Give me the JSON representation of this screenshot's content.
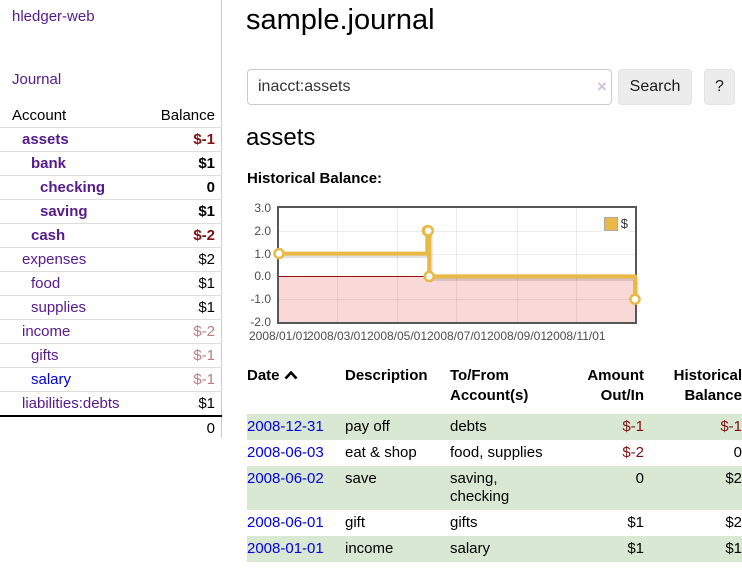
{
  "sidebar": {
    "brand": "hledger-web",
    "journal_link": "Journal",
    "accounts": {
      "headers": {
        "account": "Account",
        "balance": "Balance"
      },
      "rows": [
        {
          "name": "assets",
          "balance": "$-1"
        },
        {
          "name": "bank",
          "balance": "$1"
        },
        {
          "name": "checking",
          "balance": "0"
        },
        {
          "name": "saving",
          "balance": "$1"
        },
        {
          "name": "cash",
          "balance": "$-2"
        },
        {
          "name": "expenses",
          "balance": "$2"
        },
        {
          "name": "food",
          "balance": "$1"
        },
        {
          "name": "supplies",
          "balance": "$1"
        },
        {
          "name": "income",
          "balance": "$-2"
        },
        {
          "name": "gifts",
          "balance": "$-1"
        },
        {
          "name": "salary",
          "balance": "$-1"
        },
        {
          "name": "liabilities:debts",
          "balance": "$1"
        }
      ],
      "total": "0"
    }
  },
  "main": {
    "title": "sample.journal",
    "search": {
      "value": "inacct:assets",
      "clear": "×",
      "button": "Search",
      "help": "?"
    },
    "account_heading": "assets",
    "chart_label": "Historical Balance:"
  },
  "chart_data": {
    "type": "line",
    "step": true,
    "title": "Historical Balance",
    "series": [
      {
        "name": "$",
        "points": [
          [
            "2008-01-01",
            1
          ],
          [
            "2008-06-01",
            2
          ],
          [
            "2008-06-02",
            2
          ],
          [
            "2008-06-03",
            0
          ],
          [
            "2008-12-31",
            -1
          ]
        ]
      }
    ],
    "x_day_offsets": [
      0,
      152,
      153,
      154,
      365
    ],
    "x_range_days": 365,
    "ylim": [
      -2,
      3
    ],
    "yticks": [
      "3.0",
      "2.0",
      "1.0",
      "0.0",
      "-1.0",
      "-2.0"
    ],
    "xticks": [
      "2008/01/01",
      "2008/03/01",
      "2008/05/01",
      "2008/07/01",
      "2008/09/01",
      "2008/11/01"
    ],
    "legend": "$",
    "legend_position": "top-right",
    "grid": true,
    "negative_region_shaded": true,
    "line_color": "#e8b944",
    "negative_fill": "#f9d8d8"
  },
  "register": {
    "headers": {
      "date": "Date",
      "description": "Description",
      "accounts": "To/From Account(s)",
      "amount": "Amount Out/In",
      "balance": "Historical Balance"
    },
    "rows": [
      {
        "date": "2008-12-31",
        "description": "pay off",
        "accounts": "debts",
        "amount": "$-1",
        "balance": "$-1"
      },
      {
        "date": "2008-06-03",
        "description": "eat & shop",
        "accounts": "food, supplies",
        "amount": "$-2",
        "balance": "0"
      },
      {
        "date": "2008-06-02",
        "description": "save",
        "accounts": "saving, checking",
        "amount": "0",
        "balance": "$2"
      },
      {
        "date": "2008-06-01",
        "description": "gift",
        "accounts": "gifts",
        "amount": "$1",
        "balance": "$2"
      },
      {
        "date": "2008-01-01",
        "description": "income",
        "accounts": "salary",
        "amount": "$1",
        "balance": "$1"
      }
    ]
  },
  "colors": {
    "link_purple": "#551a8b",
    "link_blue": "#0000e0",
    "negative": "#7f1111",
    "negative_faded": "#b97f7f",
    "stripe_green": "#d9e8d3",
    "accent_gold": "#e8b944"
  }
}
